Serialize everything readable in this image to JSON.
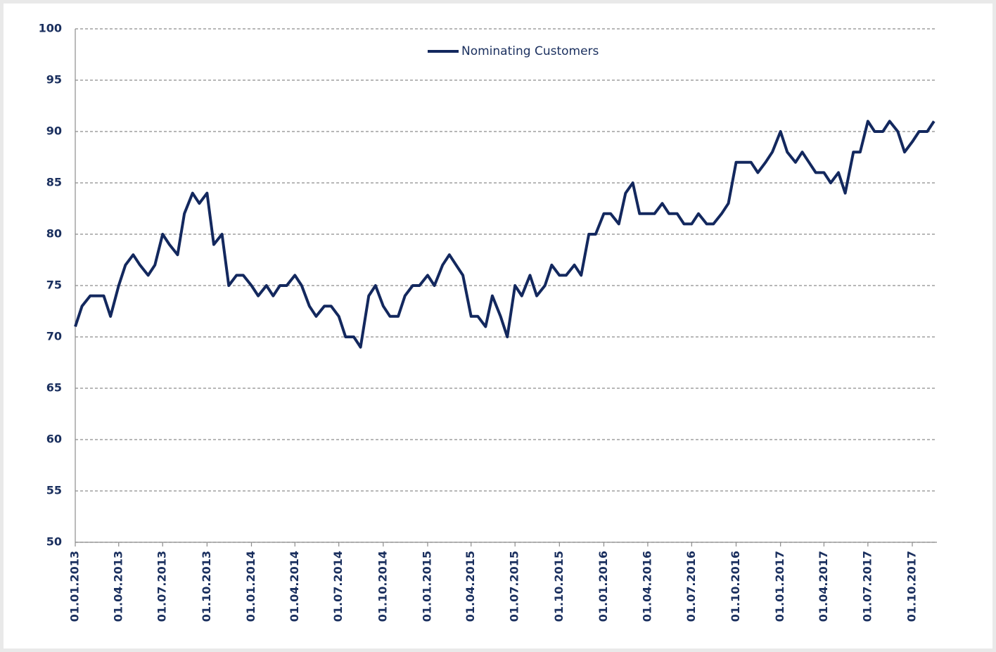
{
  "chart_data": {
    "type": "line",
    "x": [
      "2013-01-01",
      "2013-01-15",
      "2013-02-01",
      "2013-02-15",
      "2013-03-01",
      "2013-03-15",
      "2013-04-01",
      "2013-04-15",
      "2013-05-01",
      "2013-05-15",
      "2013-06-01",
      "2013-06-15",
      "2013-07-01",
      "2013-07-15",
      "2013-08-01",
      "2013-08-15",
      "2013-09-01",
      "2013-09-15",
      "2013-10-01",
      "2013-10-15",
      "2013-11-01",
      "2013-11-15",
      "2013-12-01",
      "2013-12-15",
      "2014-01-01",
      "2014-01-15",
      "2014-02-01",
      "2014-02-15",
      "2014-03-01",
      "2014-03-15",
      "2014-04-01",
      "2014-04-15",
      "2014-05-01",
      "2014-05-15",
      "2014-06-01",
      "2014-06-15",
      "2014-07-01",
      "2014-07-15",
      "2014-08-01",
      "2014-08-15",
      "2014-09-01",
      "2014-09-15",
      "2014-10-01",
      "2014-10-15",
      "2014-11-01",
      "2014-11-15",
      "2014-12-01",
      "2014-12-15",
      "2015-01-01",
      "2015-01-15",
      "2015-02-01",
      "2015-02-15",
      "2015-03-01",
      "2015-03-15",
      "2015-04-01",
      "2015-04-15",
      "2015-05-01",
      "2015-05-15",
      "2015-06-01",
      "2015-06-15",
      "2015-07-01",
      "2015-07-15",
      "2015-08-01",
      "2015-08-15",
      "2015-09-01",
      "2015-09-15",
      "2015-10-01",
      "2015-10-15",
      "2015-11-01",
      "2015-11-15",
      "2015-12-01",
      "2015-12-15",
      "2016-01-01",
      "2016-01-15",
      "2016-02-01",
      "2016-02-15",
      "2016-03-01",
      "2016-03-15",
      "2016-04-01",
      "2016-04-15",
      "2016-05-01",
      "2016-05-15",
      "2016-06-01",
      "2016-06-15",
      "2016-07-01",
      "2016-07-15",
      "2016-08-01",
      "2016-08-15",
      "2016-09-01",
      "2016-09-15",
      "2016-10-01",
      "2016-10-15",
      "2016-11-01",
      "2016-11-15",
      "2016-12-01",
      "2016-12-15",
      "2017-01-01",
      "2017-01-15",
      "2017-02-01",
      "2017-02-15",
      "2017-03-01",
      "2017-03-15",
      "2017-04-01",
      "2017-04-15",
      "2017-05-01",
      "2017-05-15",
      "2017-06-01",
      "2017-06-15",
      "2017-07-01",
      "2017-07-15",
      "2017-08-01",
      "2017-08-15",
      "2017-09-01",
      "2017-09-15",
      "2017-10-01",
      "2017-10-15",
      "2017-11-01",
      "2017-11-15"
    ],
    "series": [
      {
        "name": "Nominating Customers",
        "color": "#13285e",
        "values": [
          71,
          73,
          74,
          74,
          74,
          72,
          75,
          77,
          78,
          77,
          76,
          77,
          80,
          79,
          78,
          82,
          84,
          83,
          84,
          79,
          80,
          75,
          76,
          76,
          75,
          74,
          75,
          74,
          75,
          75,
          76,
          75,
          73,
          72,
          73,
          73,
          72,
          70,
          70,
          69,
          74,
          75,
          73,
          72,
          72,
          74,
          75,
          75,
          76,
          75,
          77,
          78,
          77,
          76,
          72,
          72,
          71,
          74,
          72,
          70,
          75,
          74,
          76,
          74,
          75,
          77,
          76,
          76,
          77,
          76,
          80,
          80,
          82,
          82,
          81,
          84,
          85,
          82,
          82,
          82,
          83,
          82,
          82,
          81,
          81,
          82,
          81,
          81,
          82,
          83,
          87,
          87,
          87,
          86,
          87,
          88,
          90,
          88,
          87,
          88,
          87,
          86,
          86,
          85,
          86,
          84,
          88,
          88,
          91,
          90,
          90,
          91,
          90,
          88,
          89,
          90,
          90,
          91
        ]
      }
    ],
    "xlim": [
      "2013-01-01",
      "2017-11-21"
    ],
    "xticks": [
      {
        "value": "2013-01-01",
        "label": "01.01.2013"
      },
      {
        "value": "2013-04-01",
        "label": "01.04.2013"
      },
      {
        "value": "2013-07-01",
        "label": "01.07.2013"
      },
      {
        "value": "2013-10-01",
        "label": "01.10.2013"
      },
      {
        "value": "2014-01-01",
        "label": "01.01.2014"
      },
      {
        "value": "2014-04-01",
        "label": "01.04.2014"
      },
      {
        "value": "2014-07-01",
        "label": "01.07.2014"
      },
      {
        "value": "2014-10-01",
        "label": "01.10.2014"
      },
      {
        "value": "2015-01-01",
        "label": "01.01.2015"
      },
      {
        "value": "2015-04-01",
        "label": "01.04.2015"
      },
      {
        "value": "2015-07-01",
        "label": "01.07.2015"
      },
      {
        "value": "2015-10-01",
        "label": "01.10.2015"
      },
      {
        "value": "2016-01-01",
        "label": "01.01.2016"
      },
      {
        "value": "2016-04-01",
        "label": "01.04.2016"
      },
      {
        "value": "2016-07-01",
        "label": "01.07.2016"
      },
      {
        "value": "2016-10-01",
        "label": "01.10.2016"
      },
      {
        "value": "2017-01-01",
        "label": "01.01.2017"
      },
      {
        "value": "2017-04-01",
        "label": "01.04.2017"
      },
      {
        "value": "2017-07-01",
        "label": "01.07.2017"
      },
      {
        "value": "2017-10-01",
        "label": "01.10.2017"
      }
    ],
    "ylim": [
      50,
      100
    ],
    "yticks": [
      50,
      55,
      60,
      65,
      70,
      75,
      80,
      85,
      90,
      95,
      100
    ],
    "grid": true,
    "legend": "top"
  }
}
